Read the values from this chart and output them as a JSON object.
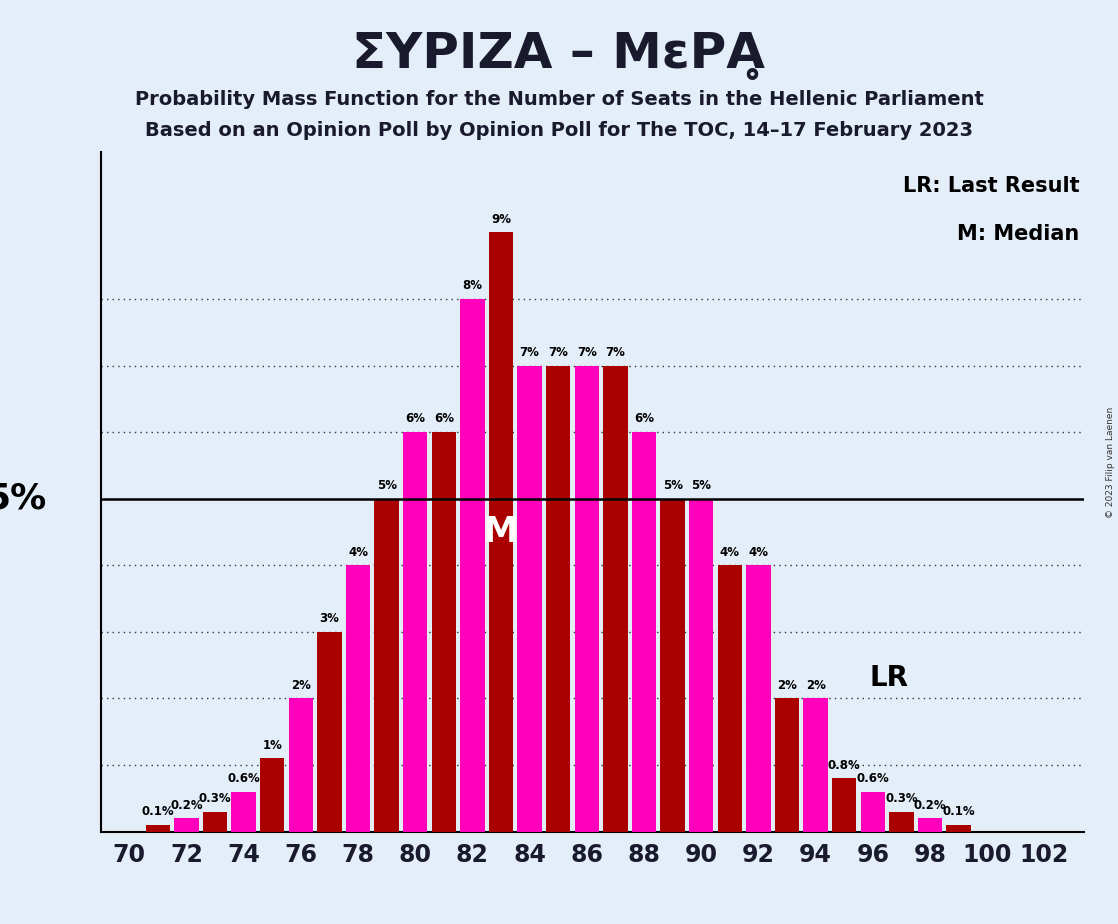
{
  "title": "ΣΥΡΙΖΑ – MεΡΑ̥",
  "subtitle1": "Probability Mass Function for the Number of Seats in the Hellenic Parliament",
  "subtitle2": "Based on an Opinion Poll by Opinion Poll for The TOC, 14–17 February 2023",
  "copyright": "© 2023 Filip van Laenen",
  "all_seats": [
    70,
    71,
    72,
    73,
    74,
    75,
    76,
    77,
    78,
    79,
    80,
    81,
    82,
    83,
    84,
    85,
    86,
    87,
    88,
    89,
    90,
    91,
    92,
    93,
    94,
    95,
    96,
    97,
    98,
    99,
    100,
    101,
    102
  ],
  "pmf_values": [
    0.0,
    0.1,
    0.2,
    0.3,
    0.6,
    1.1,
    2.0,
    3.0,
    4.0,
    5.0,
    6.0,
    6.0,
    8.0,
    9.0,
    7.0,
    7.0,
    7.0,
    7.0,
    6.0,
    5.0,
    5.0,
    4.0,
    4.0,
    2.0,
    2.0,
    0.8,
    0.6,
    0.3,
    0.2,
    0.1,
    0.0,
    0.0,
    0.0
  ],
  "bar_colors_pattern": [
    "#FF00BB",
    "#AA0000"
  ],
  "background_color": "#E4EEF8",
  "xtick_seats": [
    70,
    72,
    74,
    76,
    78,
    80,
    82,
    84,
    86,
    88,
    90,
    92,
    94,
    96,
    98,
    100,
    102
  ],
  "median_seat": 83,
  "lr_seat": 95,
  "hline_5pct": 5.0,
  "hlines_dotted": [
    1.0,
    2.0,
    3.0,
    4.0,
    6.0,
    7.0,
    8.0
  ],
  "ylim_max": 10.2,
  "lr_legend": "LR: Last Result",
  "median_legend": "M: Median",
  "lr_label": "LR",
  "median_label": "M",
  "bar_width": 0.85
}
